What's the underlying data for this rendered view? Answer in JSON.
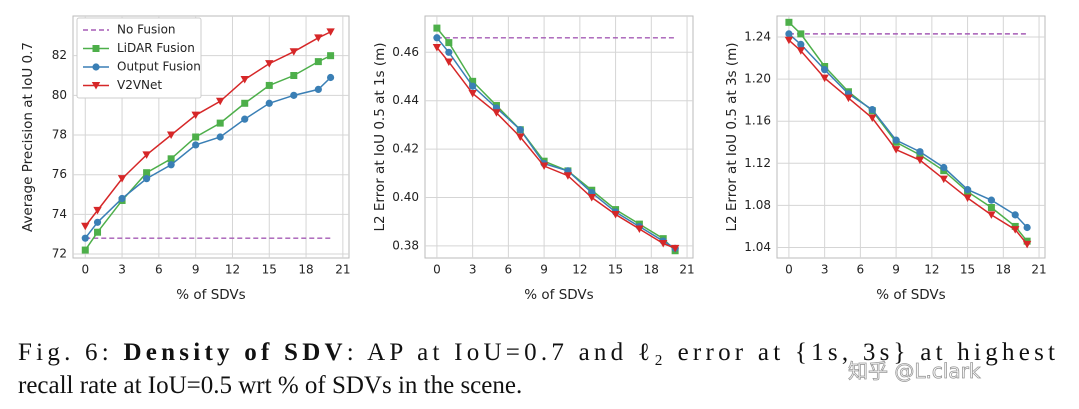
{
  "chart_data": [
    {
      "type": "line",
      "ylabel": "Average Precision at IoU 0.7",
      "xlabel": "% of SDVs",
      "x": [
        0,
        1,
        3,
        5,
        7,
        9,
        11,
        13,
        15,
        17,
        19,
        20
      ],
      "xlim": [
        -1,
        21.5
      ],
      "xticks": [
        0,
        3,
        6,
        9,
        12,
        15,
        18,
        21
      ],
      "ylim": [
        71.8,
        84
      ],
      "yticks": [
        72,
        74,
        76,
        78,
        80,
        82
      ],
      "grid": true,
      "legend": "upper left",
      "series": [
        {
          "name": "No Fusion",
          "color": "#a55bb5",
          "dashed": true,
          "values": [
            72.8,
            72.8,
            72.8,
            72.8,
            72.8,
            72.8,
            72.8,
            72.8,
            72.8,
            72.8,
            72.8,
            72.8
          ]
        },
        {
          "name": "LiDAR Fusion",
          "color": "#4daf4a",
          "marker": "square",
          "values": [
            72.2,
            73.1,
            74.7,
            76.1,
            76.8,
            77.9,
            78.6,
            79.6,
            80.5,
            81.0,
            81.7,
            82.0
          ]
        },
        {
          "name": "Output Fusion",
          "color": "#3a7fb5",
          "marker": "circle",
          "values": [
            72.8,
            73.6,
            74.8,
            75.8,
            76.5,
            77.5,
            77.9,
            78.8,
            79.6,
            80.0,
            80.3,
            80.9
          ]
        },
        {
          "name": "V2VNet",
          "color": "#d62728",
          "marker": "triangle",
          "values": [
            73.4,
            74.2,
            75.8,
            77.0,
            78.0,
            79.0,
            79.7,
            80.8,
            81.6,
            82.2,
            82.9,
            83.2
          ]
        }
      ]
    },
    {
      "type": "line",
      "ylabel": "L2 Error at IoU 0.5 at 1s (m)",
      "xlabel": "% of SDVs",
      "x": [
        0,
        1,
        3,
        5,
        7,
        9,
        11,
        13,
        15,
        17,
        19,
        20
      ],
      "xlim": [
        -1,
        21.5
      ],
      "xticks": [
        0,
        3,
        6,
        9,
        12,
        15,
        18,
        21
      ],
      "ylim": [
        0.375,
        0.475
      ],
      "yticks": [
        0.38,
        {
          "value": 0.4,
          "label": "0.40"
        },
        0.42,
        0.44,
        0.46
      ],
      "grid": true,
      "series": [
        {
          "color": "#a55bb5",
          "dashed": true,
          "values": [
            0.466,
            0.466,
            0.466,
            0.466,
            0.466,
            0.466,
            0.466,
            0.466,
            0.466,
            0.466,
            0.466,
            0.466
          ]
        },
        {
          "color": "#4daf4a",
          "marker": "square",
          "values": [
            0.47,
            0.464,
            0.448,
            0.438,
            0.428,
            0.415,
            0.411,
            0.403,
            0.395,
            0.389,
            0.383,
            0.378
          ]
        },
        {
          "color": "#3a7fb5",
          "marker": "circle",
          "values": [
            0.466,
            0.46,
            0.446,
            0.437,
            0.428,
            0.414,
            0.411,
            0.402,
            0.394,
            0.388,
            0.382,
            0.379
          ]
        },
        {
          "color": "#d62728",
          "marker": "triangle",
          "values": [
            0.462,
            0.456,
            0.443,
            0.435,
            0.425,
            0.413,
            0.409,
            0.4,
            0.393,
            0.387,
            0.381,
            0.379
          ]
        }
      ]
    },
    {
      "type": "line",
      "ylabel": "L2 Error at IoU 0.5 at 3s (m)",
      "xlabel": "% of SDVs",
      "x": [
        0,
        1,
        3,
        5,
        7,
        9,
        11,
        13,
        15,
        17,
        19,
        20
      ],
      "xlim": [
        -1,
        21.5
      ],
      "xticks": [
        0,
        3,
        6,
        9,
        12,
        15,
        18,
        21
      ],
      "ylim": [
        1.03,
        1.26
      ],
      "yticks": [
        1.04,
        1.08,
        1.12,
        1.16,
        {
          "value": 1.2,
          "label": "1.20"
        },
        1.24
      ],
      "grid": true,
      "series": [
        {
          "color": "#a55bb5",
          "dashed": true,
          "values": [
            1.243,
            1.243,
            1.243,
            1.243,
            1.243,
            1.243,
            1.243,
            1.243,
            1.243,
            1.243,
            1.243,
            1.243
          ]
        },
        {
          "color": "#4daf4a",
          "marker": "square",
          "values": [
            1.254,
            1.243,
            1.212,
            1.188,
            1.17,
            1.14,
            1.128,
            1.113,
            1.093,
            1.078,
            1.06,
            1.046
          ]
        },
        {
          "color": "#3a7fb5",
          "marker": "circle",
          "values": [
            1.243,
            1.233,
            1.209,
            1.186,
            1.171,
            1.142,
            1.131,
            1.116,
            1.095,
            1.085,
            1.071,
            1.059
          ]
        },
        {
          "color": "#d62728",
          "marker": "triangle",
          "values": [
            1.237,
            1.227,
            1.201,
            1.182,
            1.163,
            1.133,
            1.123,
            1.105,
            1.087,
            1.071,
            1.057,
            1.043
          ]
        }
      ]
    }
  ],
  "caption": {
    "label": "Fig. 6:",
    "bold": "Density of SDV",
    "lines": [
      ": AP at IoU=0.7 and ℓ₂ error at {1s, 3s} at highest",
      "recall rate at IoU=0.5 wrt % of SDVs in the scene."
    ]
  },
  "watermark": "知乎 @L.clark"
}
